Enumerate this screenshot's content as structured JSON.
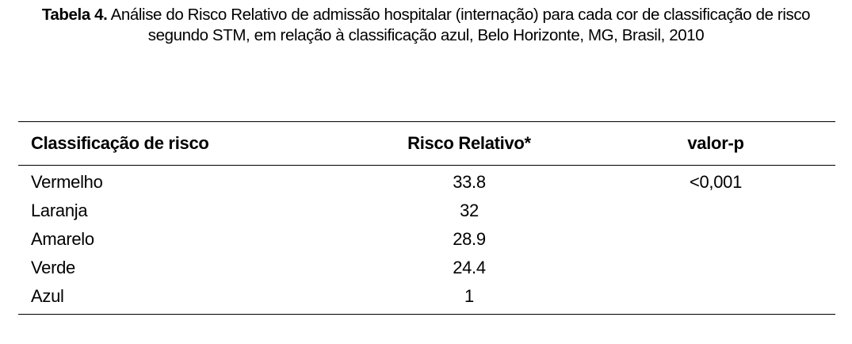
{
  "caption": {
    "label": "Tabela 4.",
    "text": "Análise do Risco Relativo de admissão hospitalar (internação) para cada cor de classificação de risco segundo STM, em relação à classificação azul, Belo Horizonte, MG, Brasil, 2010"
  },
  "table": {
    "headers": [
      "Classificação de risco",
      "Risco Relativo*",
      "valor-p"
    ],
    "rows": [
      [
        "Vermelho",
        "33.8",
        "<0,001"
      ],
      [
        "Laranja",
        "32",
        ""
      ],
      [
        "Amarelo",
        "28.9",
        ""
      ],
      [
        "Verde",
        "24.4",
        ""
      ],
      [
        "Azul",
        "1",
        ""
      ]
    ]
  }
}
